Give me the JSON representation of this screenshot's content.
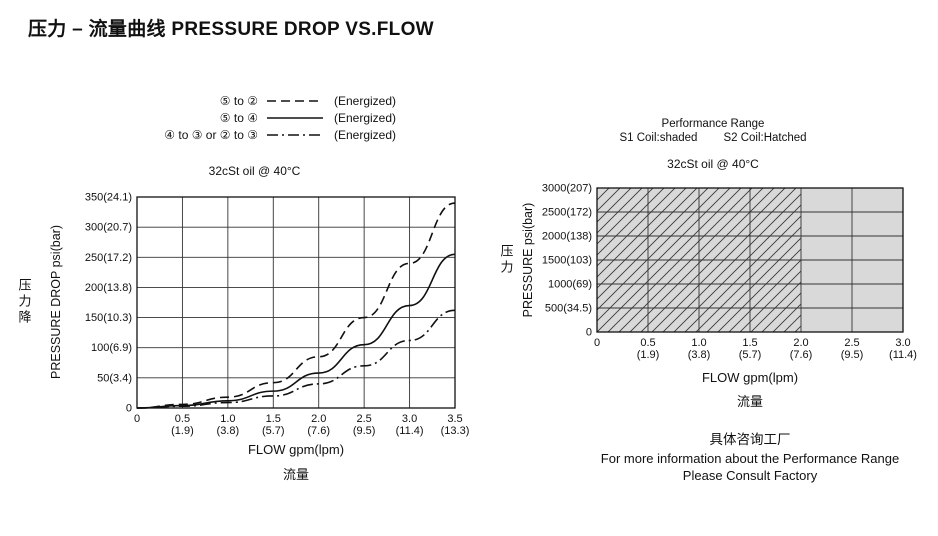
{
  "page": {
    "title": "压力 – 流量曲线 PRESSURE DROP VS.FLOW"
  },
  "colors": {
    "shade": "#d9d9d9",
    "stroke": "#111111",
    "grid": "#333333"
  },
  "chart_data": [
    {
      "type": "line",
      "title_note": "32cSt  oil @ 40°C",
      "xlabel": "FLOW gpm(lpm)",
      "xlabel_cn": "流量",
      "ylabel": "PRESSURE DROP psi(bar)",
      "ylabel_cn": "压力降",
      "xlim": [
        0,
        3.5
      ],
      "ylim": [
        0,
        350
      ],
      "grid": true,
      "x_ticks": [
        {
          "gpm": "0",
          "lpm": ""
        },
        {
          "gpm": "0.5",
          "lpm": "(1.9)"
        },
        {
          "gpm": "1.0",
          "lpm": "(3.8)"
        },
        {
          "gpm": "1.5",
          "lpm": "(5.7)"
        },
        {
          "gpm": "2.0",
          "lpm": "(7.6)"
        },
        {
          "gpm": "2.5",
          "lpm": "(9.5)"
        },
        {
          "gpm": "3.0",
          "lpm": "(11.4)"
        },
        {
          "gpm": "3.5",
          "lpm": "(13.3)"
        }
      ],
      "y_ticks": [
        "0",
        "50(3.4)",
        "100(6.9)",
        "150(10.3)",
        "200(13.8)",
        "250(17.2)",
        "300(20.7)",
        "350(24.1)"
      ],
      "series": [
        {
          "name": "⑤ to ②",
          "style": "dashed",
          "note": "(Energized)",
          "x": [
            0,
            0.5,
            1.0,
            1.5,
            2.0,
            2.5,
            3.0,
            3.5
          ],
          "y": [
            0,
            6,
            18,
            42,
            85,
            150,
            240,
            340
          ]
        },
        {
          "name": "⑤ to ④",
          "style": "solid",
          "note": "(Energized)",
          "x": [
            0,
            0.5,
            1.0,
            1.5,
            2.0,
            2.5,
            3.0,
            3.5
          ],
          "y": [
            0,
            4,
            12,
            28,
            58,
            105,
            170,
            255
          ]
        },
        {
          "name": "④ to ③  or ② to ③",
          "style": "dashdot",
          "note": "(Energized)",
          "x": [
            0,
            0.5,
            1.0,
            1.5,
            2.0,
            2.5,
            3.0,
            3.5
          ],
          "y": [
            0,
            3,
            9,
            20,
            40,
            70,
            112,
            162
          ]
        }
      ]
    },
    {
      "type": "area",
      "title": "Performance Range",
      "legend_s1": "S1 Coil:shaded",
      "legend_s2": "S2 Coil:Hatched",
      "title_note": "32cSt  oil @ 40°C",
      "xlabel": "FLOW gpm(lpm)",
      "xlabel_cn": "流量",
      "ylabel": "PRESSURE psi(bar)",
      "ylabel_cn": "压力",
      "xlim": [
        0,
        3.0
      ],
      "ylim": [
        0,
        3000
      ],
      "grid": true,
      "x_ticks": [
        {
          "gpm": "0",
          "lpm": ""
        },
        {
          "gpm": "0.5",
          "lpm": "(1.9)"
        },
        {
          "gpm": "1.0",
          "lpm": "(3.8)"
        },
        {
          "gpm": "1.5",
          "lpm": "(5.7)"
        },
        {
          "gpm": "2.0",
          "lpm": "(7.6)"
        },
        {
          "gpm": "2.5",
          "lpm": "(9.5)"
        },
        {
          "gpm": "3.0",
          "lpm": "(11.4)"
        }
      ],
      "y_ticks": [
        "0",
        "500(34.5)",
        "1000(69)",
        "1500(103)",
        "2000(138)",
        "2500(172)",
        "3000(207)"
      ],
      "regions": [
        {
          "name": "S1 Coil",
          "style": "shaded",
          "x_range": [
            0,
            3.0
          ],
          "y_range": [
            0,
            3000
          ]
        },
        {
          "name": "S2 Coil",
          "style": "hatched",
          "x_range": [
            0,
            2.0
          ],
          "y_range": [
            0,
            3000
          ]
        }
      ],
      "footer_cn": "具体咨询工厂",
      "footer": [
        "For more information about the Performance Range",
        "Please Consult Factory"
      ]
    }
  ]
}
